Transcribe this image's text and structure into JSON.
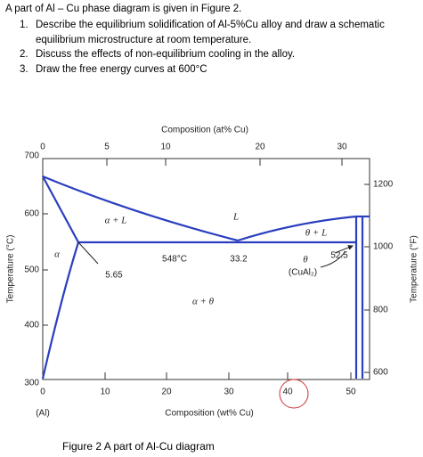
{
  "header": {
    "intro": "A part of Al – Cu phase diagram is given in Figure 2.",
    "items": [
      {
        "number": "1.",
        "text": "Describe the equilibrium solidification of Al-5%Cu alloy and draw a schematic equilibrium microstructure at room temperature."
      },
      {
        "number": "2.",
        "text": "Discuss the effects of non-equilibrium cooling in the alloy."
      },
      {
        "number": "3.",
        "text": "Draw the free energy curves at 600°C"
      }
    ]
  },
  "figure": {
    "top_axis": {
      "title": "Composition (at% Cu)",
      "ticks": [
        0,
        5,
        10,
        20,
        30
      ]
    },
    "bottom_axis": {
      "title": "Composition (wt% Cu)",
      "ticks": [
        0,
        10,
        20,
        30,
        40,
        50
      ],
      "end_label": "(Al)"
    },
    "left_axis": {
      "title": "Temperature (°C)",
      "ticks": [
        700,
        600,
        500,
        400,
        300
      ]
    },
    "right_axis": {
      "title": "Temperature (°F)",
      "ticks": [
        1200,
        1000,
        800,
        600
      ]
    },
    "labels": {
      "alpha_l": "α + L",
      "liquid": "L",
      "theta_l": "θ + L",
      "alpha": "α",
      "eutectic_temp": "548°C",
      "eutectic_comp": "33.2",
      "theta_limit": "52.5",
      "max_solubility": "5.65",
      "alpha_theta": "α + θ",
      "theta": "θ",
      "cual2": "(CuAl₂)"
    },
    "caption": "Figure 2 A part of Al-Cu diagram"
  }
}
